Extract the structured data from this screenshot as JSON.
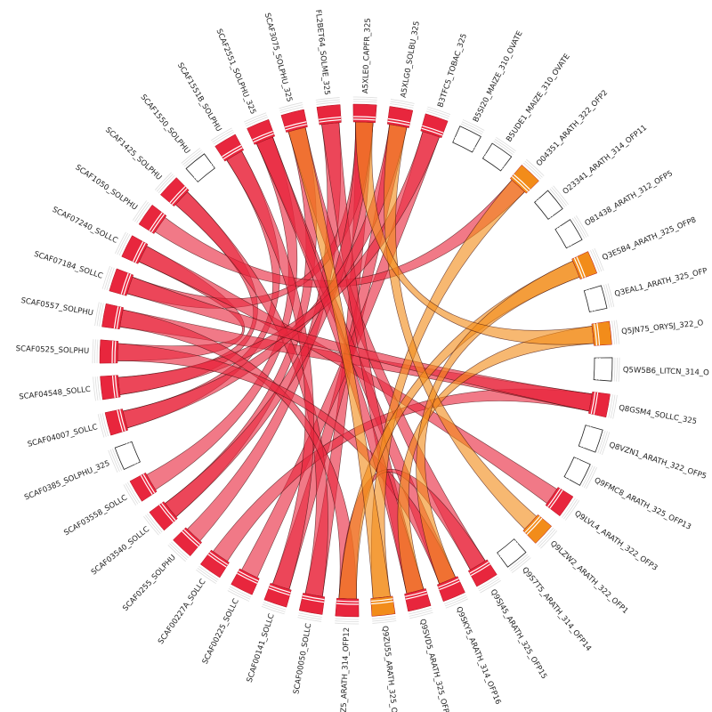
{
  "nodes": [
    {
      "label": "A5XLE0_CAPFR_325",
      "color": "#e8263d"
    },
    {
      "label": "A5XLG0_SOLBU_325",
      "color": "#e8263d"
    },
    {
      "label": "B3TFC5_TOBAC_325",
      "color": "#e8263d"
    },
    {
      "label": "B5SI20_MAIZE_310_OVATE",
      "color": "#ffffff"
    },
    {
      "label": "B5UDE1_MAIZE_310_OVATE",
      "color": "#ffffff"
    },
    {
      "label": "O04351_ARATH_322_OFP2",
      "color": "#f28c1a"
    },
    {
      "label": "O23341_ARATH_314_OFP11",
      "color": "#ffffff"
    },
    {
      "label": "O81438_ARATH_312_OFP5",
      "color": "#ffffff"
    },
    {
      "label": "Q3E5B4_ARATH_325_OFP8",
      "color": "#f28c1a"
    },
    {
      "label": "Q3EAL1_ARATH_325_OFP",
      "color": "#ffffff"
    },
    {
      "label": "Q5JN75_ORYSJ_322_O",
      "color": "#f28c1a"
    },
    {
      "label": "Q5W5B6_LITCN_314_O",
      "color": "#ffffff"
    },
    {
      "label": "Q8GSM4_SOLLC_325",
      "color": "#e8263d"
    },
    {
      "label": "Q8VZN1_ARATH_322_OFP5",
      "color": "#ffffff"
    },
    {
      "label": "Q9FMC8_ARATH_325_OFP13",
      "color": "#ffffff"
    },
    {
      "label": "Q9LVL4_ARATH_322_OFP3",
      "color": "#e8263d"
    },
    {
      "label": "Q9LZW2_ARATH_322_OFP1",
      "color": "#f28c1a"
    },
    {
      "label": "Q9S7T5_ARATH_314_OFP14",
      "color": "#ffffff"
    },
    {
      "label": "Q9SJ45_ARATH_325_OFP15",
      "color": "#e8263d"
    },
    {
      "label": "Q9SKY5_ARATH_314_OFP16",
      "color": "#e8263d"
    },
    {
      "label": "Q9SVD5_ARATH_325_OFP",
      "color": "#e8263d"
    },
    {
      "label": "Q9ZU55_ARATH_325_O",
      "color": "#f28c1a"
    },
    {
      "label": "Z5_ARATH_314_OFP12",
      "color": "#e8263d"
    },
    {
      "label": "SCAF00050_SOLLC",
      "color": "#e8263d"
    },
    {
      "label": "SCAF00141_SOLLC",
      "color": "#e8263d"
    },
    {
      "label": "SCAF00225_SOLLC",
      "color": "#e8263d"
    },
    {
      "label": "SCAF00227A_SOLLC",
      "color": "#e8263d"
    },
    {
      "label": "SCAF0255_SOLPHU",
      "color": "#e8263d"
    },
    {
      "label": "SCAF03540_SOLLC",
      "color": "#e8263d"
    },
    {
      "label": "SCAF03558_SOLLC",
      "color": "#e8263d"
    },
    {
      "label": "SCAF0385_SOLPHU_325",
      "color": "#ffffff"
    },
    {
      "label": "SCAF04007_SOLLC",
      "color": "#e8263d"
    },
    {
      "label": "SCAF04548_SOLLC",
      "color": "#e8263d"
    },
    {
      "label": "SCAF0525_SOLPHU",
      "color": "#e8263d"
    },
    {
      "label": "SCAF0557_SOLPHU",
      "color": "#e8263d"
    },
    {
      "label": "SCAF07184_SOLLC",
      "color": "#e8263d"
    },
    {
      "label": "SCAF07240_SOLLC",
      "color": "#e8263d"
    },
    {
      "label": "SCAF1050_SOLPHU",
      "color": "#e8263d"
    },
    {
      "label": "SCAF1425_SOLPHU",
      "color": "#e8263d"
    },
    {
      "label": "SCAF1550_SOLPHU",
      "color": "#ffffff"
    },
    {
      "label": "SCAF1551B_SOLPHU",
      "color": "#e8263d"
    },
    {
      "label": "SCAF2551_SOLPHU_325",
      "color": "#e8263d"
    },
    {
      "label": "SCAF3075_SOLPHU_325",
      "color": "#e8263d"
    },
    {
      "label": "FL2BET64_SOLME_325",
      "color": "#e8263d"
    }
  ],
  "links": [
    [
      23,
      0
    ],
    [
      24,
      1
    ],
    [
      25,
      2
    ],
    [
      26,
      12
    ],
    [
      27,
      43
    ],
    [
      28,
      42
    ],
    [
      29,
      41
    ],
    [
      31,
      40
    ],
    [
      32,
      38
    ],
    [
      33,
      36
    ],
    [
      34,
      12
    ],
    [
      35,
      0
    ],
    [
      36,
      15
    ],
    [
      37,
      5
    ],
    [
      38,
      23
    ],
    [
      40,
      24
    ],
    [
      41,
      19
    ],
    [
      42,
      18
    ],
    [
      43,
      20
    ],
    [
      0,
      28
    ],
    [
      1,
      31
    ],
    [
      2,
      32
    ],
    [
      12,
      35
    ],
    [
      22,
      34
    ],
    [
      19,
      33
    ],
    [
      20,
      41
    ],
    [
      18,
      22
    ],
    [
      5,
      21
    ],
    [
      8,
      22
    ],
    [
      10,
      20
    ],
    [
      16,
      1
    ],
    [
      21,
      42
    ],
    [
      8,
      19
    ],
    [
      10,
      0
    ]
  ]
}
